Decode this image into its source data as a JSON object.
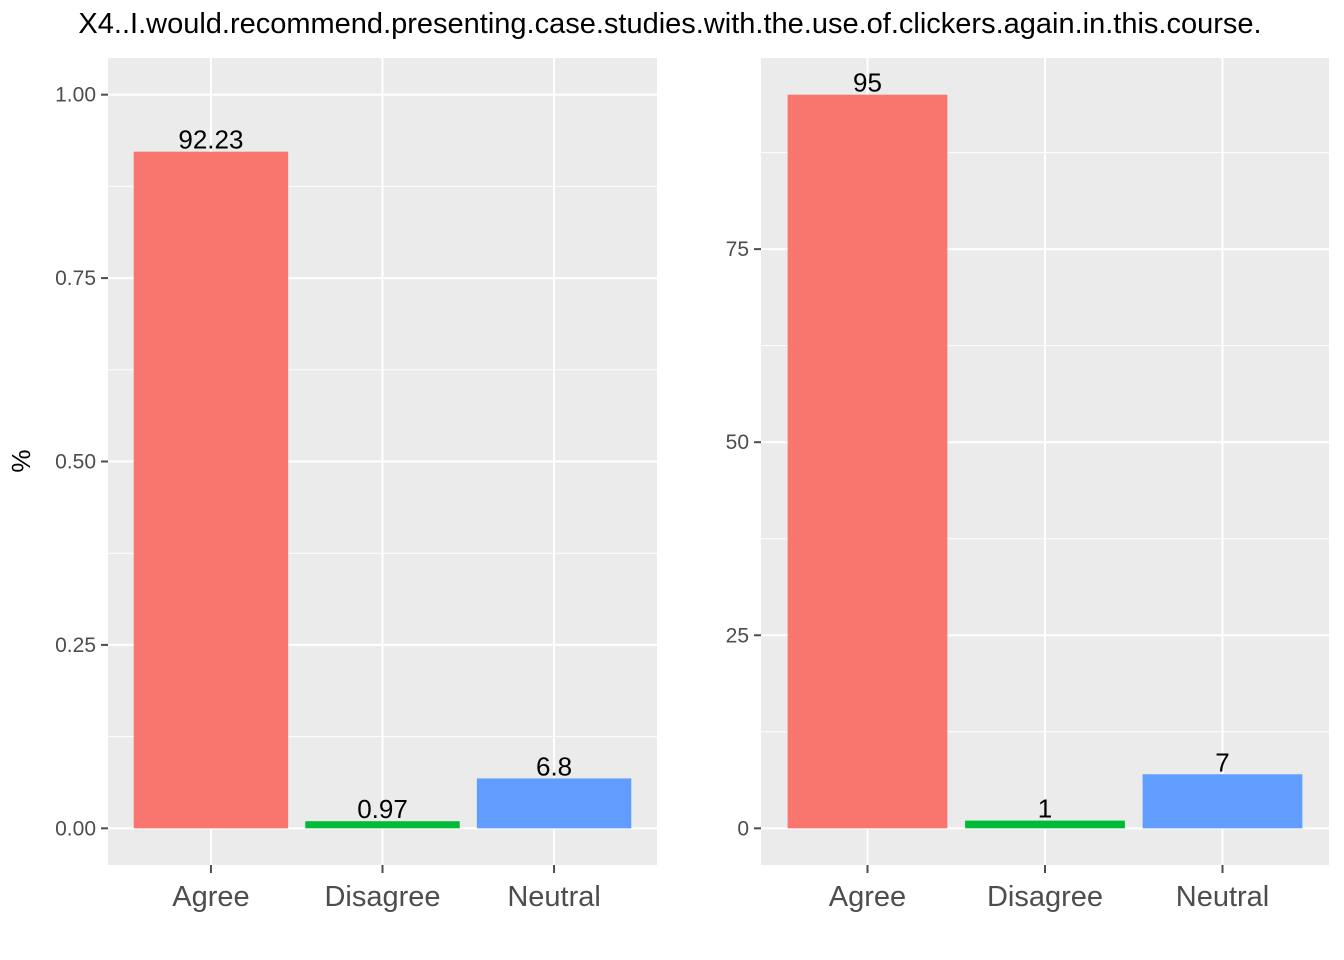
{
  "title": "X4..I.would.recommend.presenting.case.studies.with.the.use.of.clickers.again.in.this.course.",
  "colors": {
    "panel_bg": "#ebebeb",
    "grid": "#ffffff",
    "tick": "#4d4d4d",
    "Agree": "#f8766d",
    "Disagree": "#00ba38",
    "Neutral": "#619cff"
  },
  "chart_data": [
    {
      "type": "bar",
      "categories": [
        "Agree",
        "Disagree",
        "Neutral"
      ],
      "values": [
        0.9223,
        0.0097,
        0.068
      ],
      "data_labels": [
        "92.23",
        "0.97",
        "6.8"
      ],
      "ylabel": "%",
      "xlabel": "",
      "ylim": [
        -0.05,
        1.05
      ],
      "yticks": [
        0.0,
        0.25,
        0.5,
        0.75,
        1.0
      ],
      "ytick_labels": [
        "0.00",
        "0.25",
        "0.50",
        "0.75",
        "1.00"
      ],
      "grid": true,
      "legend": "none"
    },
    {
      "type": "bar",
      "categories": [
        "Agree",
        "Disagree",
        "Neutral"
      ],
      "values": [
        95,
        1,
        7
      ],
      "data_labels": [
        "95",
        "1",
        "7"
      ],
      "ylabel": "",
      "xlabel": "",
      "ylim": [
        -4.75,
        99.75
      ],
      "yticks": [
        0,
        25,
        50,
        75
      ],
      "ytick_labels": [
        "0",
        "25",
        "50",
        "75"
      ],
      "grid": true,
      "legend": "none"
    }
  ]
}
